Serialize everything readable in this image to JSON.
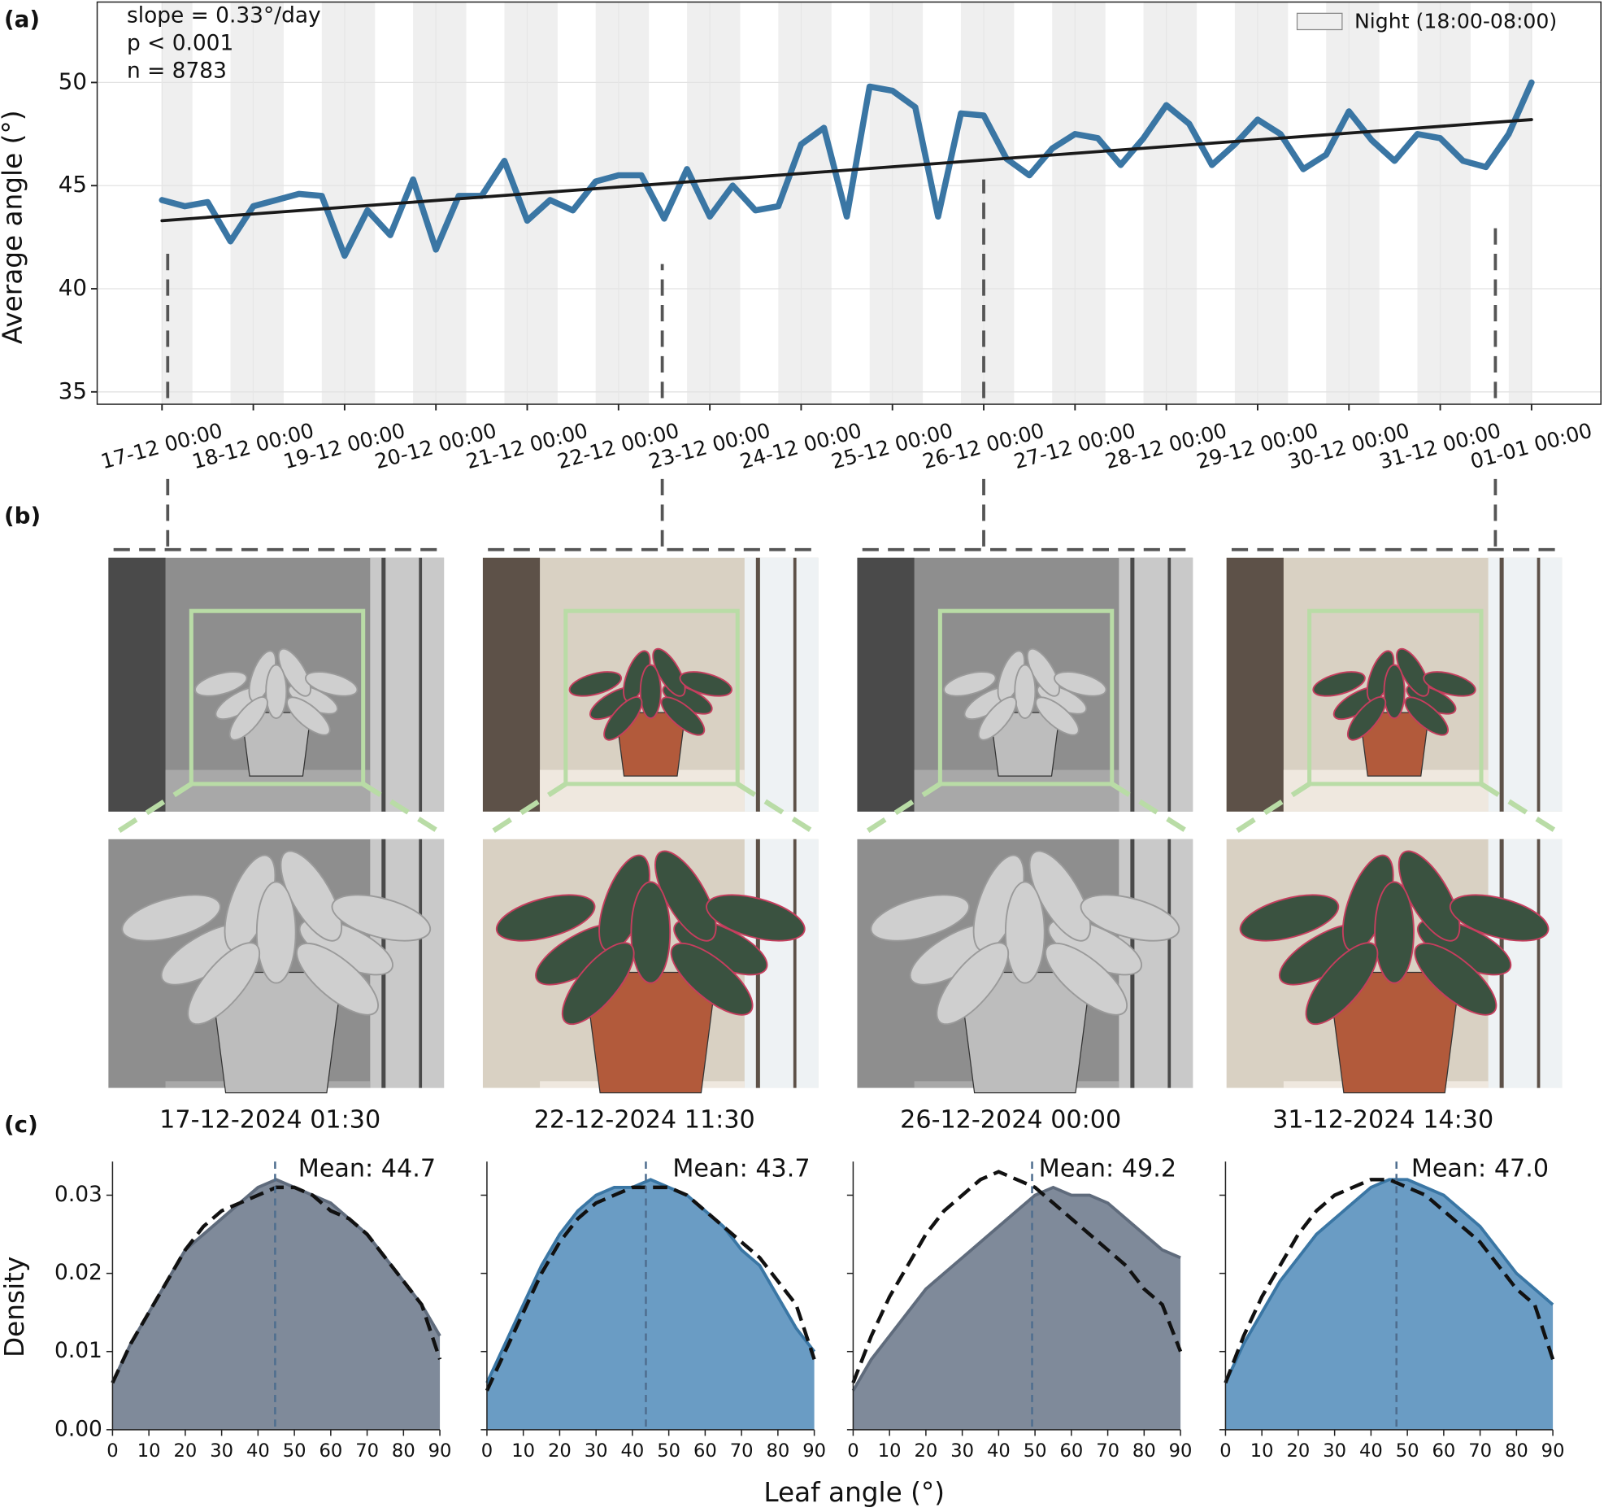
{
  "panel_labels": [
    "(a)",
    "(b)",
    "(c)"
  ],
  "density_xlabel": "Leaf angle (°)",
  "chart_data": [
    {
      "type": "line",
      "ylabel": "Average angle (°)",
      "annotations": [
        "slope = 0.33°/day",
        "p < 0.001",
        "n = 8783"
      ],
      "xlim": [
        -0.71,
        15.76
      ],
      "xticks": [
        {
          "value": 0,
          "label": "17-12 00:00"
        },
        {
          "value": 1,
          "label": "18-12 00:00"
        },
        {
          "value": 2,
          "label": "19-12 00:00"
        },
        {
          "value": 3,
          "label": "20-12 00:00"
        },
        {
          "value": 4,
          "label": "21-12 00:00"
        },
        {
          "value": 5,
          "label": "22-12 00:00"
        },
        {
          "value": 6,
          "label": "23-12 00:00"
        },
        {
          "value": 7,
          "label": "24-12 00:00"
        },
        {
          "value": 8,
          "label": "25-12 00:00"
        },
        {
          "value": 9,
          "label": "26-12 00:00"
        },
        {
          "value": 10,
          "label": "27-12 00:00"
        },
        {
          "value": 11,
          "label": "28-12 00:00"
        },
        {
          "value": 12,
          "label": "29-12 00:00"
        },
        {
          "value": 13,
          "label": "30-12 00:00"
        },
        {
          "value": 14,
          "label": "31-12 00:00"
        },
        {
          "value": 15,
          "label": "01-01 00:00"
        }
      ],
      "ylim": [
        34.4,
        53.9
      ],
      "yticks": [
        35,
        40,
        45,
        50
      ],
      "grid": true,
      "legend": "upper right",
      "night": {
        "label": "Night (18:00-08:00)",
        "color": "#efefef",
        "spans": [
          [
            0,
            0.333
          ],
          [
            0.75,
            1.333
          ],
          [
            1.75,
            2.333
          ],
          [
            2.75,
            3.333
          ],
          [
            3.75,
            4.333
          ],
          [
            4.75,
            5.333
          ],
          [
            5.75,
            6.333
          ],
          [
            6.75,
            7.333
          ],
          [
            7.75,
            8.333
          ],
          [
            8.75,
            9.333
          ],
          [
            9.75,
            10.333
          ],
          [
            10.75,
            11.333
          ],
          [
            11.75,
            12.333
          ],
          [
            12.75,
            13.333
          ],
          [
            13.75,
            14.333
          ],
          [
            14.75,
            15
          ]
        ]
      },
      "series": [
        {
          "color": "#3a76a4",
          "x": [
            0,
            0.25,
            0.5,
            0.75,
            1,
            1.25,
            1.5,
            1.75,
            2,
            2.25,
            2.5,
            2.75,
            3,
            3.25,
            3.5,
            3.75,
            4,
            4.25,
            4.5,
            4.75,
            5,
            5.25,
            5.5,
            5.75,
            6,
            6.25,
            6.5,
            6.75,
            7,
            7.25,
            7.5,
            7.75,
            8,
            8.25,
            8.5,
            8.75,
            9,
            9.25,
            9.5,
            9.75,
            10,
            10.25,
            10.5,
            10.75,
            11,
            11.25,
            11.5,
            11.75,
            12,
            12.25,
            12.5,
            12.75,
            13,
            13.25,
            13.5,
            13.75,
            14,
            14.25,
            14.5,
            14.75,
            15
          ],
          "values": [
            44.3,
            44.0,
            44.2,
            42.3,
            44.0,
            44.3,
            44.6,
            44.5,
            41.6,
            43.8,
            42.6,
            45.3,
            41.9,
            44.5,
            44.5,
            46.2,
            43.3,
            44.3,
            43.8,
            45.2,
            45.5,
            45.5,
            43.4,
            45.8,
            43.5,
            45.0,
            43.8,
            44.0,
            47.0,
            47.8,
            43.5,
            49.8,
            49.6,
            48.8,
            43.5,
            48.5,
            48.4,
            46.3,
            45.5,
            46.8,
            47.5,
            47.3,
            46.0,
            47.3,
            48.9,
            48.0,
            46.0,
            47.0,
            48.2,
            47.5,
            45.8,
            46.5,
            48.6,
            47.2,
            46.2,
            47.5,
            47.3,
            46.2,
            45.9,
            47.5,
            50.0
          ]
        },
        {
          "color": "#1a1a1a",
          "x": [
            0,
            15
          ],
          "values": [
            43.3,
            48.2
          ]
        }
      ],
      "sample_x": [
        0.0625,
        5.479,
        9,
        14.604
      ],
      "sample_marker_tops": [
        42.1,
        41.2,
        45.3,
        43.0
      ]
    },
    {
      "type": "density",
      "title": "17-12-2024 01:30",
      "ylabel": "Density",
      "show_ytick_labels": true,
      "x": [
        0,
        5,
        10,
        15,
        20,
        25,
        30,
        35,
        40,
        45,
        50,
        55,
        60,
        65,
        70,
        75,
        80,
        85,
        90
      ],
      "xlim": [
        0,
        90
      ],
      "xticks": [
        0,
        10,
        20,
        30,
        40,
        50,
        60,
        70,
        80,
        90
      ],
      "ylim": [
        0,
        0.0343
      ],
      "yticks": [
        {
          "value": 0,
          "label": "0.00"
        },
        0.01,
        0.02,
        0.03
      ],
      "mean": 44.7,
      "mean_label": "Mean: 44.7",
      "series": [
        {
          "color": "#7f8a9a",
          "fill": true,
          "values": [
            0.006,
            0.011,
            0.015,
            0.019,
            0.023,
            0.025,
            0.027,
            0.029,
            0.031,
            0.032,
            0.031,
            0.03,
            0.029,
            0.027,
            0.025,
            0.022,
            0.019,
            0.016,
            0.012
          ]
        },
        {
          "color": "#111111",
          "dashed": true,
          "values": [
            0.006,
            0.011,
            0.015,
            0.019,
            0.023,
            0.026,
            0.028,
            0.029,
            0.03,
            0.031,
            0.031,
            0.03,
            0.028,
            0.027,
            0.025,
            0.022,
            0.019,
            0.016,
            0.009
          ]
        }
      ]
    },
    {
      "type": "density",
      "title": "22-12-2024 11:30",
      "show_ytick_labels": false,
      "x": [
        0,
        5,
        10,
        15,
        20,
        25,
        30,
        35,
        40,
        45,
        50,
        55,
        60,
        65,
        70,
        75,
        80,
        85,
        90
      ],
      "xlim": [
        0,
        90
      ],
      "xticks": [
        0,
        10,
        20,
        30,
        40,
        50,
        60,
        70,
        80,
        90
      ],
      "ylim": [
        0,
        0.0343
      ],
      "yticks": [
        0,
        0.01,
        0.02,
        0.03
      ],
      "mean": 43.7,
      "mean_label": "Mean: 43.7",
      "series": [
        {
          "color": "#6a9cc4",
          "fill": true,
          "values": [
            0.006,
            0.011,
            0.016,
            0.021,
            0.025,
            0.028,
            0.03,
            0.031,
            0.031,
            0.032,
            0.031,
            0.03,
            0.028,
            0.026,
            0.023,
            0.021,
            0.017,
            0.013,
            0.01
          ]
        },
        {
          "color": "#111111",
          "dashed": true,
          "values": [
            0.005,
            0.01,
            0.015,
            0.02,
            0.024,
            0.027,
            0.029,
            0.03,
            0.031,
            0.031,
            0.031,
            0.03,
            0.028,
            0.026,
            0.024,
            0.022,
            0.019,
            0.016,
            0.009
          ]
        }
      ]
    },
    {
      "type": "density",
      "title": "26-12-2024 00:00",
      "show_ytick_labels": false,
      "x": [
        0,
        5,
        10,
        15,
        20,
        25,
        30,
        35,
        40,
        45,
        50,
        55,
        60,
        65,
        70,
        75,
        80,
        85,
        90
      ],
      "xlim": [
        0,
        90
      ],
      "xticks": [
        0,
        10,
        20,
        30,
        40,
        50,
        60,
        70,
        80,
        90
      ],
      "ylim": [
        0,
        0.0343
      ],
      "yticks": [
        0,
        0.01,
        0.02,
        0.03
      ],
      "mean": 49.2,
      "mean_label": "Mean: 49.2",
      "series": [
        {
          "color": "#7f8a9a",
          "fill": true,
          "values": [
            0.005,
            0.009,
            0.012,
            0.015,
            0.018,
            0.02,
            0.022,
            0.024,
            0.026,
            0.028,
            0.03,
            0.031,
            0.03,
            0.03,
            0.029,
            0.027,
            0.025,
            0.023,
            0.022
          ]
        },
        {
          "color": "#111111",
          "dashed": true,
          "values": [
            0.006,
            0.012,
            0.017,
            0.021,
            0.025,
            0.028,
            0.03,
            0.032,
            0.033,
            0.032,
            0.031,
            0.029,
            0.027,
            0.025,
            0.023,
            0.021,
            0.018,
            0.016,
            0.01
          ]
        }
      ]
    },
    {
      "type": "density",
      "title": "31-12-2024 14:30",
      "show_ytick_labels": false,
      "x": [
        0,
        5,
        10,
        15,
        20,
        25,
        30,
        35,
        40,
        45,
        50,
        55,
        60,
        65,
        70,
        75,
        80,
        85,
        90
      ],
      "xlim": [
        0,
        90
      ],
      "xticks": [
        0,
        10,
        20,
        30,
        40,
        50,
        60,
        70,
        80,
        90
      ],
      "ylim": [
        0,
        0.0343
      ],
      "yticks": [
        0,
        0.01,
        0.02,
        0.03
      ],
      "mean": 47.0,
      "mean_label": "Mean: 47.0",
      "series": [
        {
          "color": "#6a9cc4",
          "fill": true,
          "values": [
            0.006,
            0.011,
            0.015,
            0.019,
            0.022,
            0.025,
            0.027,
            0.029,
            0.031,
            0.032,
            0.032,
            0.031,
            0.03,
            0.028,
            0.026,
            0.023,
            0.02,
            0.018,
            0.016
          ]
        },
        {
          "color": "#111111",
          "dashed": true,
          "values": [
            0.006,
            0.012,
            0.017,
            0.021,
            0.025,
            0.028,
            0.03,
            0.031,
            0.032,
            0.032,
            0.031,
            0.03,
            0.028,
            0.026,
            0.024,
            0.021,
            0.018,
            0.016,
            0.009
          ]
        }
      ]
    }
  ]
}
